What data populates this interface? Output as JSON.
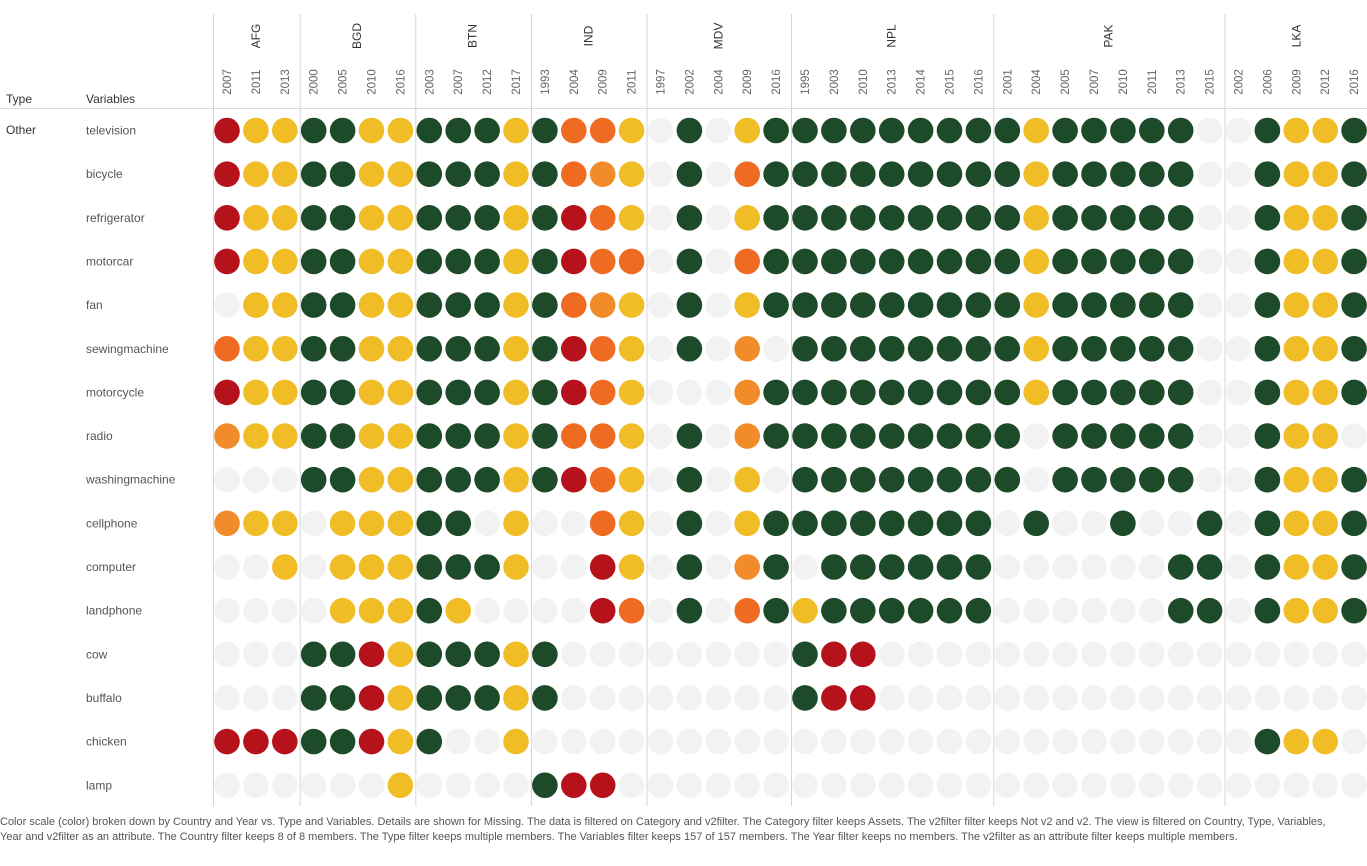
{
  "headers": {
    "type": "Type",
    "variables": "Variables"
  },
  "type_value": "Other",
  "caption": "Color scale (color) broken down by Country and Year vs. Type and Variables.  Details are shown for Missing. The data is filtered on Category and v2filter. The Category filter keeps Assets. The v2filter filter keeps Not v2 and v2. The view is filtered on Country, Type, Variables, Year and v2filter as an attribute. The Country filter keeps 8 of 8 members. The Type filter keeps multiple members. The Variables filter keeps 157 of 157 members. The Year filter keeps no members. The v2filter as an attribute filter keeps multiple members.",
  "colors": {
    "0": "#f2f2f2",
    "1": "#b5121b",
    "2": "#ef6b22",
    "3": "#f28c2a",
    "4": "#f0bd27",
    "5": "#1d4a28"
  },
  "chart_data": {
    "type": "heatmap",
    "countries": [
      {
        "code": "AFG",
        "years": [
          "2007",
          "2011",
          "2013"
        ]
      },
      {
        "code": "BGD",
        "years": [
          "2000",
          "2005",
          "2010",
          "2016"
        ]
      },
      {
        "code": "BTN",
        "years": [
          "2003",
          "2007",
          "2012",
          "2017"
        ]
      },
      {
        "code": "IND",
        "years": [
          "1993",
          "2004",
          "2009",
          "2011"
        ]
      },
      {
        "code": "MDV",
        "years": [
          "1997",
          "2002",
          "2004",
          "2009",
          "2016"
        ]
      },
      {
        "code": "NPL",
        "years": [
          "1995",
          "2003",
          "2010",
          "2013",
          "2014",
          "2015",
          "2016"
        ]
      },
      {
        "code": "PAK",
        "years": [
          "2001",
          "2004",
          "2005",
          "2007",
          "2010",
          "2011",
          "2013",
          "2015"
        ]
      },
      {
        "code": "LKA",
        "years": [
          "2002",
          "2006",
          "2009",
          "2012",
          "2016"
        ]
      }
    ],
    "variables": [
      "television",
      "bicycle",
      "refrigerator",
      "motorcar",
      "fan",
      "sewingmachine",
      "motorcycle",
      "radio",
      "washingmachine",
      "cellphone",
      "computer",
      "landphone",
      "cow",
      "buffalo",
      "chicken",
      "lamp"
    ],
    "color_key": "0 = missing (light grey), 1 = dark red, 2 = orange, 3 = light orange, 4 = yellow, 5 = dark green",
    "values": [
      "144 5544 5554 5224 05045 5555555 54555550 05445",
      "144 5544 5554 5234 05025 5555555 54555550 05445",
      "144 5544 5554 5124 05045 5555555 54555550 05445",
      "144 5544 5554 5122 05025 5555555 54555550 05445",
      "044 5544 5554 5234 05045 5555555 54555550 05445",
      "244 5544 5554 5124 05030 5555555 54555550 05445",
      "144 5544 5554 5124 00035 5555555 54555550 05445",
      "344 5544 5554 5224 05035 5555555 50555550 05440",
      "000 5544 5554 5124 05040 5555555 50555550 05445",
      "344 0444 5504 0024 05045 5555555 05005005 05445",
      "004 0444 5554 0014 05035 0555555 00000055 05445",
      "000 0444 5400 0012 05025 4555555 00000055 05445",
      "000 5514 5554 5000 00000 5110000 00000000 00000",
      "000 5514 5554 5000 00000 5110000 00000000 00000",
      "111 5514 5004 0000 00000 0000000 00000000 05440",
      "000 0004 0000 5110 00000 0000000 00000000 00000"
    ]
  }
}
